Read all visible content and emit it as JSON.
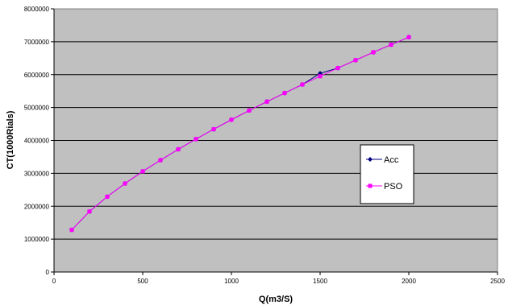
{
  "chart_data": {
    "type": "line",
    "title": "",
    "xlabel": "Q(m3/S)",
    "ylabel": "CT(1000Rials)",
    "xlim": [
      0,
      2500
    ],
    "ylim": [
      0,
      8000000
    ],
    "x_ticks": [
      "0",
      "500",
      "1000",
      "1500",
      "2000",
      "2500"
    ],
    "y_ticks": [
      "0",
      "1000000",
      "2000000",
      "3000000",
      "4000000",
      "5000000",
      "6000000",
      "7000000",
      "8000000"
    ],
    "grid": "horizontal",
    "legend_position": "right",
    "plot_background": "#c0c0c0",
    "series": [
      {
        "name": "Acc",
        "color": "#000080",
        "marker": "diamond",
        "x": [
          100,
          200,
          300,
          400,
          500,
          600,
          700,
          800,
          900,
          1000,
          1100,
          1200,
          1300,
          1400,
          1500,
          1600,
          1700,
          1800,
          1900,
          2000
        ],
        "y": [
          1280000,
          1840000,
          2290000,
          2690000,
          3060000,
          3400000,
          3730000,
          4040000,
          4340000,
          4630000,
          4910000,
          5180000,
          5440000,
          5700000,
          6040000,
          6200000,
          6440000,
          6680000,
          6910000,
          7140000
        ]
      },
      {
        "name": "PSO",
        "color": "#ff00ff",
        "marker": "square",
        "x": [
          100,
          200,
          300,
          400,
          500,
          600,
          700,
          800,
          900,
          1000,
          1100,
          1200,
          1300,
          1400,
          1500,
          1600,
          1700,
          1800,
          1900,
          2000
        ],
        "y": [
          1280000,
          1840000,
          2290000,
          2690000,
          3060000,
          3400000,
          3730000,
          4040000,
          4340000,
          4630000,
          4910000,
          5180000,
          5440000,
          5700000,
          5950000,
          6200000,
          6440000,
          6680000,
          6910000,
          7140000
        ]
      }
    ]
  }
}
